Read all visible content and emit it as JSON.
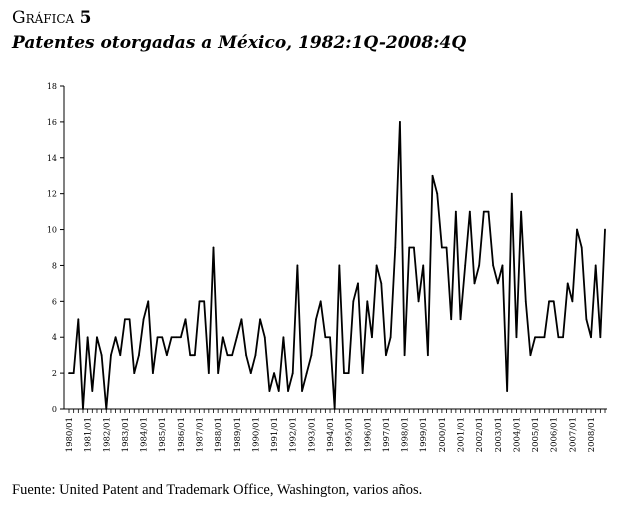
{
  "figure": {
    "label": "Gráfica",
    "number": "5",
    "title": "Patentes otorgadas a México, 1982:1Q-2008:4Q",
    "source": "Fuente: United Patent and Trademark Office, Washington, varios años."
  },
  "chart_data": {
    "type": "line",
    "title": "Patentes otorgadas a México, 1982:1Q-2008:4Q",
    "xlabel": "",
    "ylabel": "",
    "ylim": [
      0,
      18
    ],
    "yticks": [
      0,
      2,
      4,
      6,
      8,
      10,
      12,
      14,
      16,
      18
    ],
    "grid": false,
    "x_tick_labels": [
      "1980/01",
      "1981/01",
      "1982/01",
      "1983/01",
      "1984/01",
      "1985/01",
      "1986/01",
      "1987/01",
      "1988/01",
      "1989/01",
      "1990/01",
      "1991/01",
      "1992/01",
      "1993/01",
      "1994/01",
      "1995/01",
      "1996/01",
      "1997/01",
      "1998/01",
      "1999/01",
      "2000/01",
      "2001/01",
      "2002/01",
      "2003/01",
      "2004/01",
      "2005/01",
      "2006/01",
      "2007/01",
      "2008/01"
    ],
    "x_start_year": 1980,
    "periods_per_year": 4,
    "series": [
      {
        "name": "Patentes otorgadas",
        "values": [
          2,
          2,
          5,
          0,
          4,
          1,
          4,
          3,
          0,
          3,
          4,
          3,
          5,
          5,
          2,
          3,
          5,
          6,
          2,
          4,
          4,
          3,
          4,
          4,
          4,
          5,
          3,
          3,
          6,
          6,
          2,
          9,
          2,
          4,
          3,
          3,
          4,
          5,
          3,
          2,
          3,
          5,
          4,
          1,
          2,
          1,
          4,
          1,
          2,
          8,
          1,
          2,
          3,
          5,
          6,
          4,
          4,
          0,
          8,
          2,
          2,
          6,
          7,
          2,
          6,
          4,
          8,
          7,
          3,
          4,
          9,
          16,
          3,
          9,
          9,
          6,
          8,
          3,
          13,
          12,
          9,
          9,
          5,
          11,
          5,
          8,
          11,
          7,
          8,
          11,
          11,
          8,
          7,
          8,
          1,
          12,
          4,
          11,
          6,
          3,
          4,
          4,
          4,
          6,
          6,
          4,
          4,
          7,
          6,
          10,
          9,
          5,
          4,
          8,
          4,
          10
        ]
      }
    ]
  }
}
